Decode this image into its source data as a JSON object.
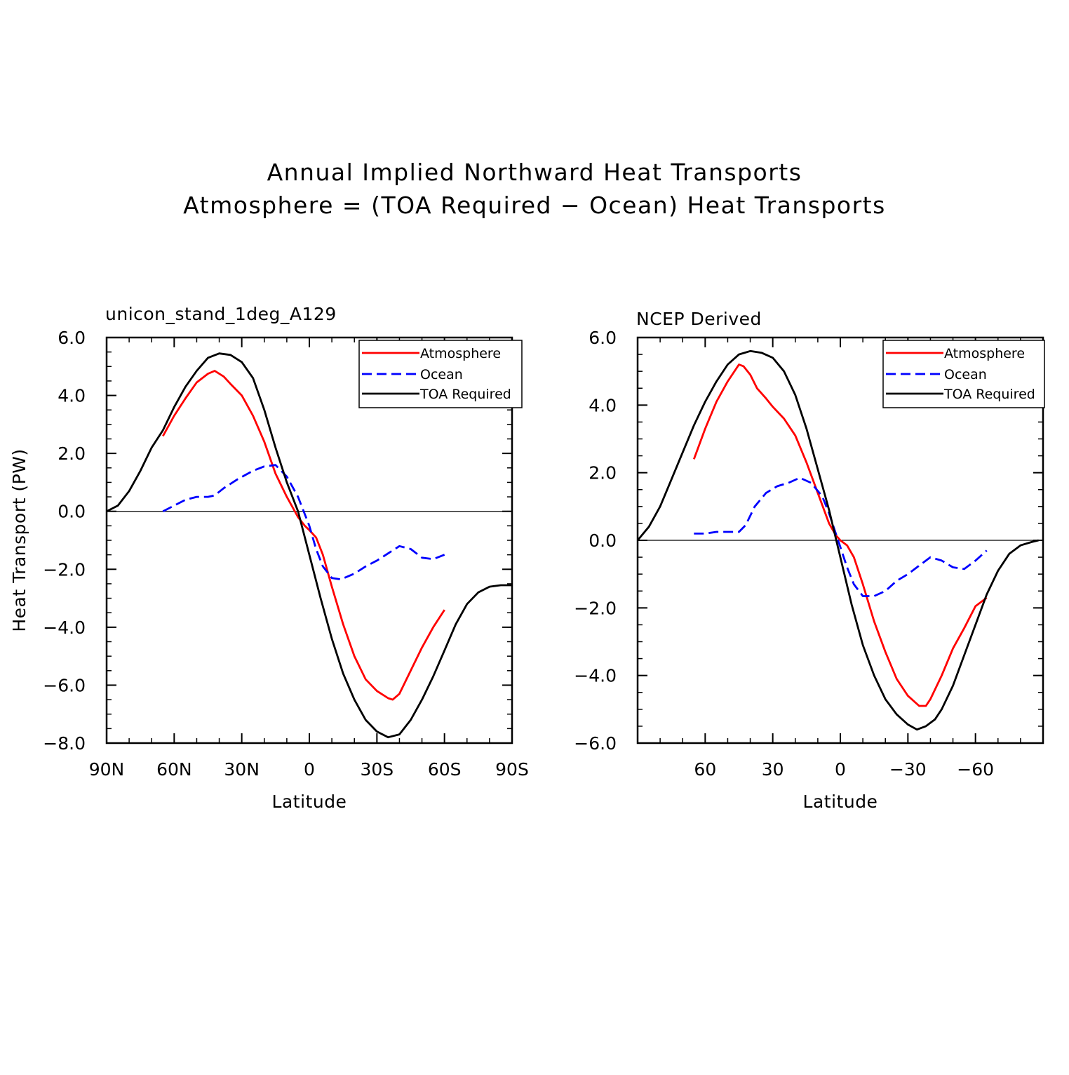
{
  "main_title": {
    "line1": "Annual Implied Northward Heat Transports",
    "line2": "Atmosphere = (TOA Required − Ocean) Heat Transports"
  },
  "colors": {
    "atmosphere": "#ff0000",
    "ocean": "#0000ff",
    "toa": "#000000"
  },
  "chart_data": [
    {
      "type": "line",
      "title": "unicon_stand_1deg_A129",
      "xlabel": "Latitude",
      "ylabel": "Heat Transport (PW)",
      "xlim": [
        90,
        -90
      ],
      "ylim": [
        -8,
        6
      ],
      "xticks": [
        90,
        60,
        30,
        0,
        -30,
        -60,
        -90
      ],
      "xtick_labels": [
        "90N",
        "60N",
        "30N",
        "0",
        "30S",
        "60S",
        "90S"
      ],
      "yticks": [
        6,
        4,
        2,
        0,
        -2,
        -4,
        -6,
        -8
      ],
      "ytick_labels": [
        "6.0",
        "4.0",
        "2.0",
        "0.0",
        "−2.0",
        "−4.0",
        "−6.0",
        "−8.0"
      ],
      "zero_line": true,
      "legend": {
        "position": "top-right",
        "entries": [
          {
            "label": "Atmosphere",
            "color": "#ff0000",
            "dash": "solid"
          },
          {
            "label": "Ocean",
            "color": "#0000ff",
            "dash": "dashed"
          },
          {
            "label": "TOA Required",
            "color": "#000000",
            "dash": "solid"
          }
        ]
      },
      "series": [
        {
          "name": "Atmosphere",
          "color": "#ff0000",
          "dash": "solid",
          "points": [
            [
              65,
              2.6
            ],
            [
              60,
              3.3
            ],
            [
              55,
              3.9
            ],
            [
              50,
              4.45
            ],
            [
              45,
              4.75
            ],
            [
              42,
              4.85
            ],
            [
              38,
              4.65
            ],
            [
              35,
              4.4
            ],
            [
              30,
              4.0
            ],
            [
              25,
              3.3
            ],
            [
              20,
              2.4
            ],
            [
              15,
              1.3
            ],
            [
              10,
              0.5
            ],
            [
              5,
              -0.2
            ],
            [
              2,
              -0.5
            ],
            [
              0,
              -0.65
            ],
            [
              -3,
              -0.9
            ],
            [
              -6,
              -1.5
            ],
            [
              -10,
              -2.6
            ],
            [
              -15,
              -3.9
            ],
            [
              -20,
              -5.0
            ],
            [
              -25,
              -5.8
            ],
            [
              -30,
              -6.2
            ],
            [
              -35,
              -6.45
            ],
            [
              -37,
              -6.5
            ],
            [
              -40,
              -6.3
            ],
            [
              -45,
              -5.5
            ],
            [
              -50,
              -4.7
            ],
            [
              -55,
              -4.0
            ],
            [
              -60,
              -3.4
            ]
          ]
        },
        {
          "name": "Ocean",
          "color": "#0000ff",
          "dash": "dashed",
          "points": [
            [
              65,
              0.0
            ],
            [
              60,
              0.2
            ],
            [
              55,
              0.4
            ],
            [
              50,
              0.5
            ],
            [
              45,
              0.5
            ],
            [
              42,
              0.55
            ],
            [
              38,
              0.8
            ],
            [
              32,
              1.1
            ],
            [
              25,
              1.4
            ],
            [
              20,
              1.55
            ],
            [
              15,
              1.6
            ],
            [
              10,
              1.2
            ],
            [
              5,
              0.5
            ],
            [
              0,
              -0.5
            ],
            [
              -3,
              -1.3
            ],
            [
              -6,
              -1.9
            ],
            [
              -10,
              -2.3
            ],
            [
              -14,
              -2.35
            ],
            [
              -20,
              -2.15
            ],
            [
              -25,
              -1.9
            ],
            [
              -30,
              -1.7
            ],
            [
              -35,
              -1.45
            ],
            [
              -40,
              -1.2
            ],
            [
              -45,
              -1.3
            ],
            [
              -50,
              -1.6
            ],
            [
              -55,
              -1.65
            ],
            [
              -60,
              -1.5
            ]
          ]
        },
        {
          "name": "TOA Required",
          "color": "#000000",
          "dash": "solid",
          "points": [
            [
              90,
              0.0
            ],
            [
              85,
              0.2
            ],
            [
              80,
              0.7
            ],
            [
              75,
              1.4
            ],
            [
              70,
              2.2
            ],
            [
              65,
              2.8
            ],
            [
              60,
              3.6
            ],
            [
              55,
              4.3
            ],
            [
              50,
              4.85
            ],
            [
              45,
              5.3
            ],
            [
              40,
              5.45
            ],
            [
              35,
              5.4
            ],
            [
              30,
              5.15
            ],
            [
              25,
              4.6
            ],
            [
              20,
              3.5
            ],
            [
              15,
              2.2
            ],
            [
              10,
              1.0
            ],
            [
              5,
              0.0
            ],
            [
              0,
              -1.5
            ],
            [
              -5,
              -3.0
            ],
            [
              -10,
              -4.4
            ],
            [
              -15,
              -5.6
            ],
            [
              -20,
              -6.5
            ],
            [
              -25,
              -7.2
            ],
            [
              -30,
              -7.6
            ],
            [
              -35,
              -7.8
            ],
            [
              -40,
              -7.7
            ],
            [
              -45,
              -7.2
            ],
            [
              -50,
              -6.5
            ],
            [
              -55,
              -5.7
            ],
            [
              -60,
              -4.8
            ],
            [
              -65,
              -3.9
            ],
            [
              -70,
              -3.2
            ],
            [
              -75,
              -2.8
            ],
            [
              -80,
              -2.6
            ],
            [
              -85,
              -2.55
            ],
            [
              -90,
              -2.55
            ]
          ]
        }
      ]
    },
    {
      "type": "line",
      "title": "NCEP Derived",
      "xlabel": "Latitude",
      "ylabel": "",
      "xlim": [
        90,
        -90
      ],
      "ylim": [
        -6,
        6
      ],
      "xticks": [
        60,
        30,
        0,
        -30,
        -60
      ],
      "xtick_labels": [
        "60",
        "30",
        "0",
        "−30",
        "−60"
      ],
      "yticks": [
        6,
        4,
        2,
        0,
        -2,
        -4,
        -6
      ],
      "ytick_labels": [
        "6.0",
        "4.0",
        "2.0",
        "0.0",
        "−2.0",
        "−4.0",
        "−6.0"
      ],
      "zero_line": true,
      "legend": {
        "position": "top-right",
        "entries": [
          {
            "label": "Atmosphere",
            "color": "#ff0000",
            "dash": "solid"
          },
          {
            "label": "Ocean",
            "color": "#0000ff",
            "dash": "dashed"
          },
          {
            "label": "TOA Required",
            "color": "#000000",
            "dash": "solid"
          }
        ]
      },
      "series": [
        {
          "name": "Atmosphere",
          "color": "#ff0000",
          "dash": "solid",
          "points": [
            [
              65,
              2.4
            ],
            [
              60,
              3.3
            ],
            [
              55,
              4.1
            ],
            [
              50,
              4.7
            ],
            [
              45,
              5.2
            ],
            [
              43,
              5.15
            ],
            [
              40,
              4.9
            ],
            [
              37,
              4.5
            ],
            [
              33,
              4.2
            ],
            [
              30,
              3.95
            ],
            [
              25,
              3.6
            ],
            [
              20,
              3.1
            ],
            [
              15,
              2.3
            ],
            [
              10,
              1.4
            ],
            [
              5,
              0.5
            ],
            [
              2,
              0.15
            ],
            [
              0,
              0.0
            ],
            [
              -3,
              -0.15
            ],
            [
              -6,
              -0.5
            ],
            [
              -10,
              -1.3
            ],
            [
              -15,
              -2.4
            ],
            [
              -20,
              -3.3
            ],
            [
              -25,
              -4.1
            ],
            [
              -30,
              -4.6
            ],
            [
              -35,
              -4.9
            ],
            [
              -38,
              -4.9
            ],
            [
              -40,
              -4.7
            ],
            [
              -45,
              -4.0
            ],
            [
              -50,
              -3.2
            ],
            [
              -55,
              -2.6
            ],
            [
              -60,
              -1.95
            ],
            [
              -65,
              -1.7
            ]
          ]
        },
        {
          "name": "Ocean",
          "color": "#0000ff",
          "dash": "dashed",
          "points": [
            [
              65,
              0.2
            ],
            [
              60,
              0.2
            ],
            [
              55,
              0.25
            ],
            [
              50,
              0.25
            ],
            [
              45,
              0.25
            ],
            [
              42,
              0.45
            ],
            [
              38,
              1.0
            ],
            [
              33,
              1.4
            ],
            [
              28,
              1.6
            ],
            [
              23,
              1.7
            ],
            [
              18,
              1.85
            ],
            [
              13,
              1.7
            ],
            [
              8,
              1.3
            ],
            [
              5,
              0.8
            ],
            [
              0,
              -0.2
            ],
            [
              -3,
              -0.8
            ],
            [
              -6,
              -1.3
            ],
            [
              -10,
              -1.65
            ],
            [
              -15,
              -1.65
            ],
            [
              -20,
              -1.5
            ],
            [
              -25,
              -1.2
            ],
            [
              -30,
              -1.0
            ],
            [
              -35,
              -0.75
            ],
            [
              -40,
              -0.5
            ],
            [
              -45,
              -0.6
            ],
            [
              -50,
              -0.8
            ],
            [
              -55,
              -0.85
            ],
            [
              -60,
              -0.6
            ],
            [
              -65,
              -0.3
            ]
          ]
        },
        {
          "name": "TOA Required",
          "color": "#000000",
          "dash": "solid",
          "points": [
            [
              90,
              0.0
            ],
            [
              85,
              0.4
            ],
            [
              80,
              1.0
            ],
            [
              75,
              1.8
            ],
            [
              70,
              2.6
            ],
            [
              65,
              3.4
            ],
            [
              60,
              4.1
            ],
            [
              55,
              4.7
            ],
            [
              50,
              5.2
            ],
            [
              45,
              5.5
            ],
            [
              40,
              5.6
            ],
            [
              35,
              5.55
            ],
            [
              30,
              5.4
            ],
            [
              25,
              5.0
            ],
            [
              20,
              4.3
            ],
            [
              15,
              3.3
            ],
            [
              10,
              2.1
            ],
            [
              5,
              0.9
            ],
            [
              0,
              -0.5
            ],
            [
              -5,
              -1.9
            ],
            [
              -10,
              -3.1
            ],
            [
              -15,
              -4.0
            ],
            [
              -20,
              -4.7
            ],
            [
              -25,
              -5.15
            ],
            [
              -30,
              -5.45
            ],
            [
              -34,
              -5.6
            ],
            [
              -38,
              -5.5
            ],
            [
              -42,
              -5.3
            ],
            [
              -45,
              -5.0
            ],
            [
              -50,
              -4.3
            ],
            [
              -55,
              -3.4
            ],
            [
              -60,
              -2.5
            ],
            [
              -65,
              -1.6
            ],
            [
              -70,
              -0.9
            ],
            [
              -75,
              -0.4
            ],
            [
              -80,
              -0.15
            ],
            [
              -85,
              -0.05
            ],
            [
              -88,
              0.0
            ]
          ]
        }
      ]
    }
  ]
}
